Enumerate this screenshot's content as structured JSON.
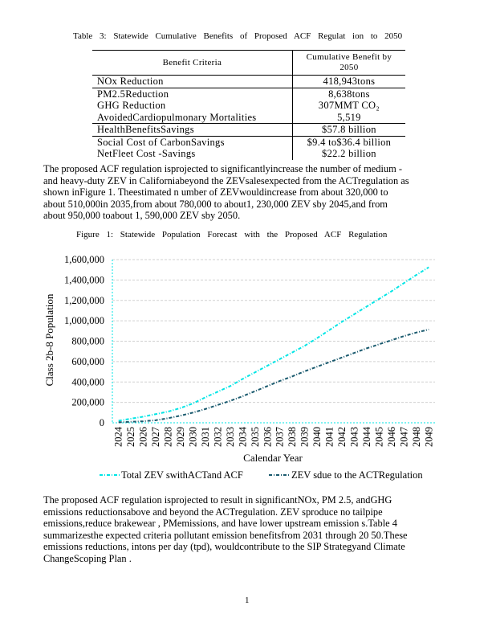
{
  "table": {
    "caption": "Table 3: Statewide Cumulative Benefits of Proposed ACF Regulat ion to 2050",
    "headers": [
      "Benefit Criteria",
      "Cumulative Benefit by",
      "2050"
    ],
    "rows": [
      [
        "NOx Reduction",
        "418,943tons"
      ],
      [
        "PM2.5Reduction",
        "8,638tons"
      ],
      [
        "GHG Reduction",
        "307MMT CO₂"
      ],
      [
        "AvoidedCardiopulmonary Mortalities",
        "5,519"
      ],
      [
        "HealthBenefitsSavings",
        "$57.8 billion"
      ],
      [
        "Social Cost of CarbonSavings",
        "$9.4 to$36.4  billion"
      ],
      [
        "NetFleet Cost -Savings",
        "$22.2 billion"
      ]
    ]
  },
  "paragraph1": [
    "The proposed ACF regulation isprojected to significantlyincrease the number of medium -",
    "and heavy-duty ZEV in Californiabeyond the ZEVsalesexpected from the ACTregulation as",
    "shown inFigure 1. Theestimated n umber of ZEVwouldincrease from about 320,000 to",
    "about 510,000in 2035,from about 780,000 to about1, 230,000 ZEV sby 2045,and from",
    "about 950,000 toabout 1, 590,000 ZEV sby 2050."
  ],
  "figure_caption": "Figure 1: Statewide Population Forecast with the Proposed ACF Regulation",
  "chart_data": {
    "type": "line",
    "title": "",
    "xlabel": "Calendar Year",
    "ylabel": "Class 2b-8 Population",
    "ylim": [
      0,
      1600000
    ],
    "yticks": [
      "0",
      "200,000",
      "400,000",
      "600,000",
      "800,000",
      "1,000,000",
      "1,200,000",
      "1,400,000",
      "1,600,000"
    ],
    "categories": [
      "2024",
      "2025",
      "2026",
      "2027",
      "2028",
      "2029",
      "2030",
      "2031",
      "2032",
      "2033",
      "2034",
      "2035",
      "2036",
      "2037",
      "2038",
      "2039",
      "2040",
      "2041",
      "2042",
      "2043",
      "2044",
      "2045",
      "2046",
      "2047",
      "2048",
      "2049"
    ],
    "grid": true,
    "legend": "bottom",
    "series": [
      {
        "name": "Total ZEV swithACTand ACF",
        "color": "#00e5e5",
        "values": [
          20000,
          40000,
          60000,
          85000,
          110000,
          145000,
          190000,
          250000,
          305000,
          360000,
          430000,
          495000,
          560000,
          625000,
          690000,
          755000,
          830000,
          910000,
          990000,
          1065000,
          1140000,
          1215000,
          1290000,
          1370000,
          1450000,
          1525000
        ]
      },
      {
        "name": "ZEV sdue to the ACTRegulation",
        "color": "#1a5a6e",
        "values": [
          5000,
          10000,
          15000,
          25000,
          45000,
          70000,
          100000,
          135000,
          175000,
          215000,
          260000,
          310000,
          360000,
          410000,
          455000,
          505000,
          550000,
          595000,
          640000,
          685000,
          730000,
          770000,
          810000,
          850000,
          885000,
          915000
        ]
      }
    ]
  },
  "paragraph2": [
    "The proposed ACF regulation isprojected to result in significantNOx, PM 2.5, andGHG",
    "emissions reductionsabove and beyond the ACTregulation. ZEV sproduce no tailpipe",
    "emissions,reduce brakewear , PMemissions, and have lower upstream emission s.Table 4",
    "summarizesthe expected criteria pollutant emission benefitsfrom 2031 through 20 50.These",
    "emissions reductions, intons per day (tpd), wouldcontribute to the SIP Strategyand Climate",
    "ChangeScoping Plan ."
  ],
  "page_number": "1"
}
